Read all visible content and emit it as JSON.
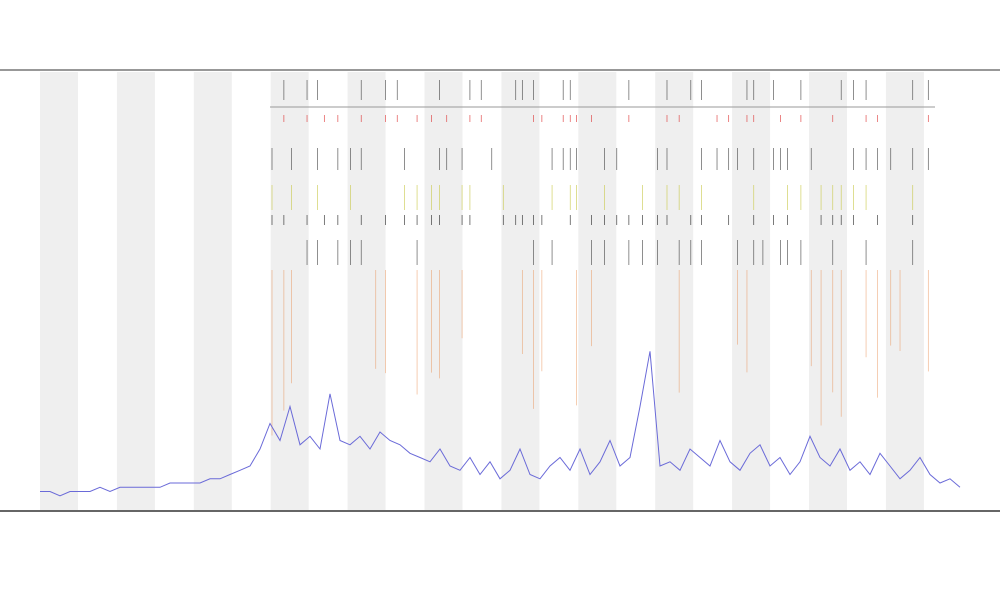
{
  "chart_data": {
    "type": "line",
    "color": "#6a6ad8",
    "ylim": [
      0,
      100
    ],
    "values": [
      2,
      2,
      1,
      2,
      2,
      2,
      3,
      2,
      3,
      3,
      3,
      3,
      3,
      4,
      4,
      4,
      4,
      5,
      5,
      6,
      7,
      8,
      12,
      18,
      14,
      22,
      13,
      15,
      12,
      25,
      14,
      13,
      15,
      12,
      16,
      14,
      13,
      11,
      10,
      9,
      12,
      8,
      7,
      10,
      6,
      9,
      5,
      7,
      12,
      6,
      5,
      8,
      10,
      7,
      12,
      6,
      9,
      14,
      8,
      10,
      22,
      35,
      8,
      9,
      7,
      12,
      10,
      8,
      14,
      9,
      7,
      11,
      13,
      8,
      10,
      6,
      9,
      15,
      10,
      8,
      12,
      7,
      9,
      6,
      11,
      8,
      5,
      7,
      10,
      6,
      4,
      5,
      3
    ]
  }
}
